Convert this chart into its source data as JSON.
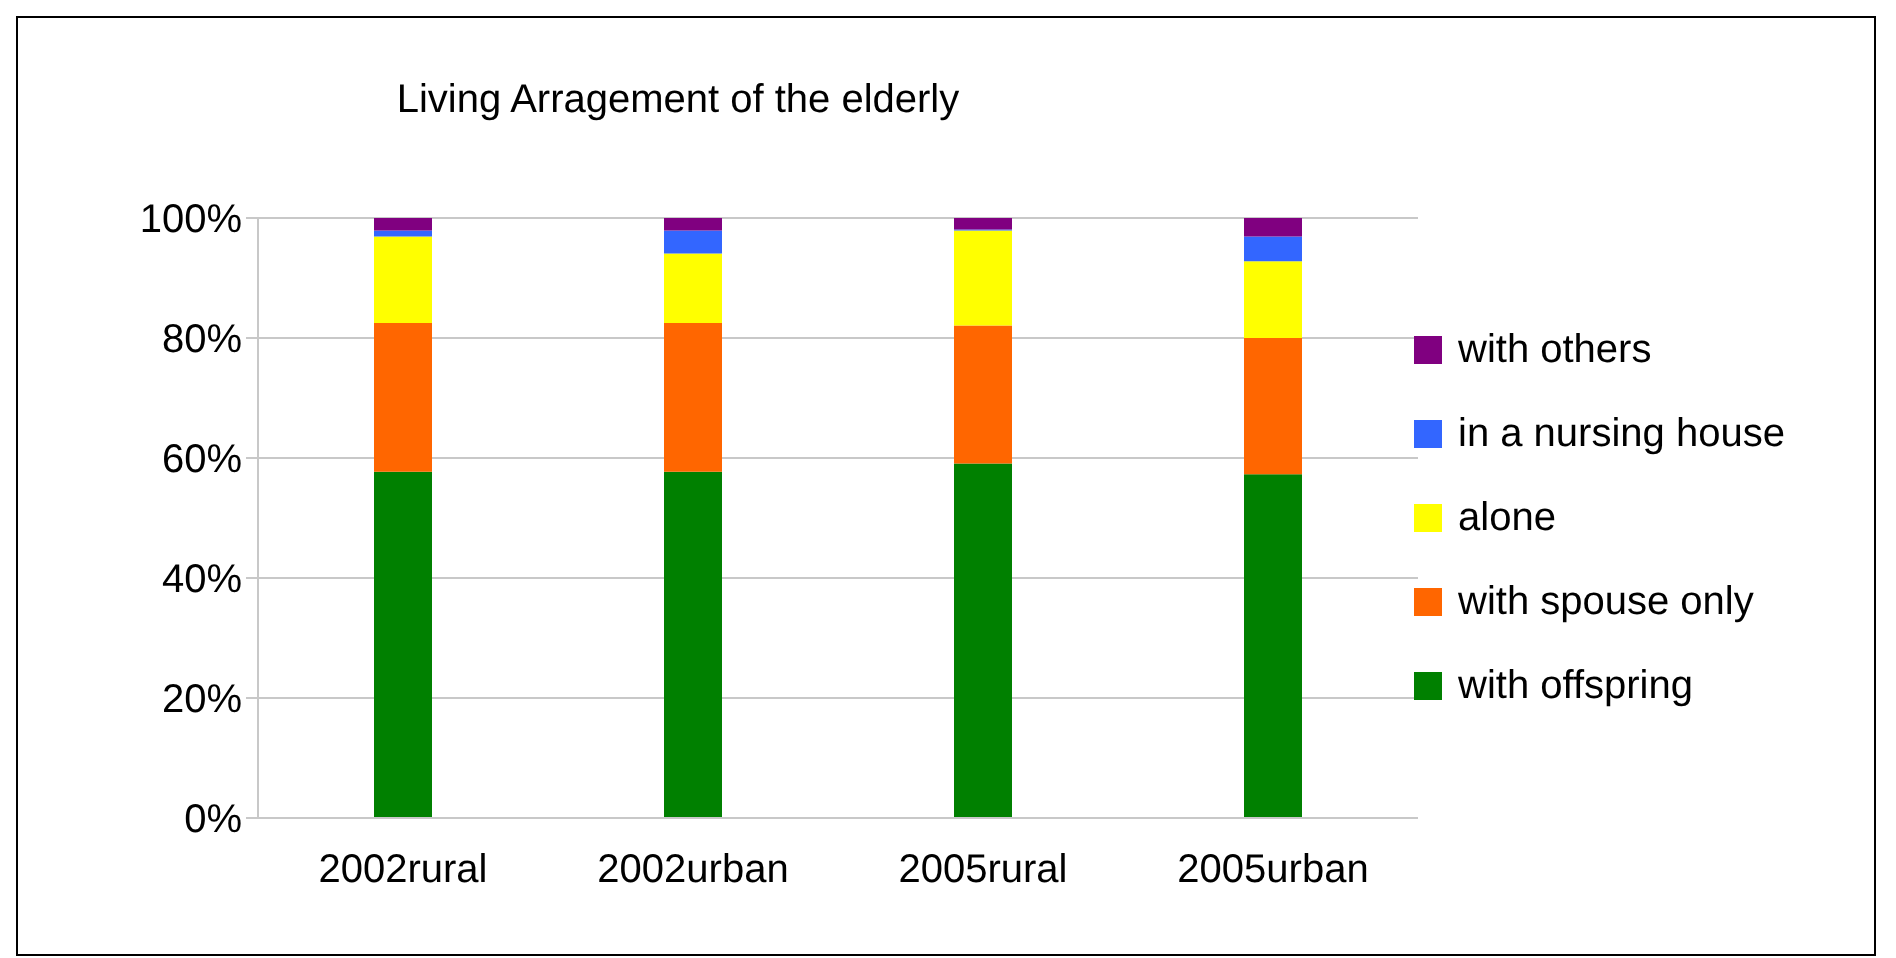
{
  "chart_data": {
    "type": "bar",
    "title": "Living Arragement of the elderly",
    "stacked": true,
    "categories": [
      "2002rural",
      "2002urban",
      "2005rural",
      "2005urban"
    ],
    "series": [
      {
        "name": "with offspring",
        "color": "#008000",
        "values": [
          57.7,
          57.7,
          59.1,
          57.3
        ]
      },
      {
        "name": "with spouse only",
        "color": "#ff6600",
        "values": [
          24.8,
          24.8,
          23.0,
          22.7
        ]
      },
      {
        "name": "alone",
        "color": "#ffff00",
        "values": [
          14.4,
          11.6,
          15.8,
          12.8
        ]
      },
      {
        "name": "in a nursing house",
        "color": "#3366ff",
        "values": [
          1.0,
          3.8,
          0.2,
          4.1
        ]
      },
      {
        "name": "with others",
        "color": "#800080",
        "values": [
          2.1,
          2.1,
          1.9,
          3.1
        ]
      }
    ],
    "ylim": [
      0,
      100
    ],
    "yticks": [
      {
        "value": 0,
        "label": "0%"
      },
      {
        "value": 20,
        "label": "20%"
      },
      {
        "value": 40,
        "label": "40%"
      },
      {
        "value": 60,
        "label": "60%"
      },
      {
        "value": 80,
        "label": "80%"
      },
      {
        "value": 100,
        "label": "100%"
      }
    ],
    "grid": "y",
    "legend": "right"
  }
}
